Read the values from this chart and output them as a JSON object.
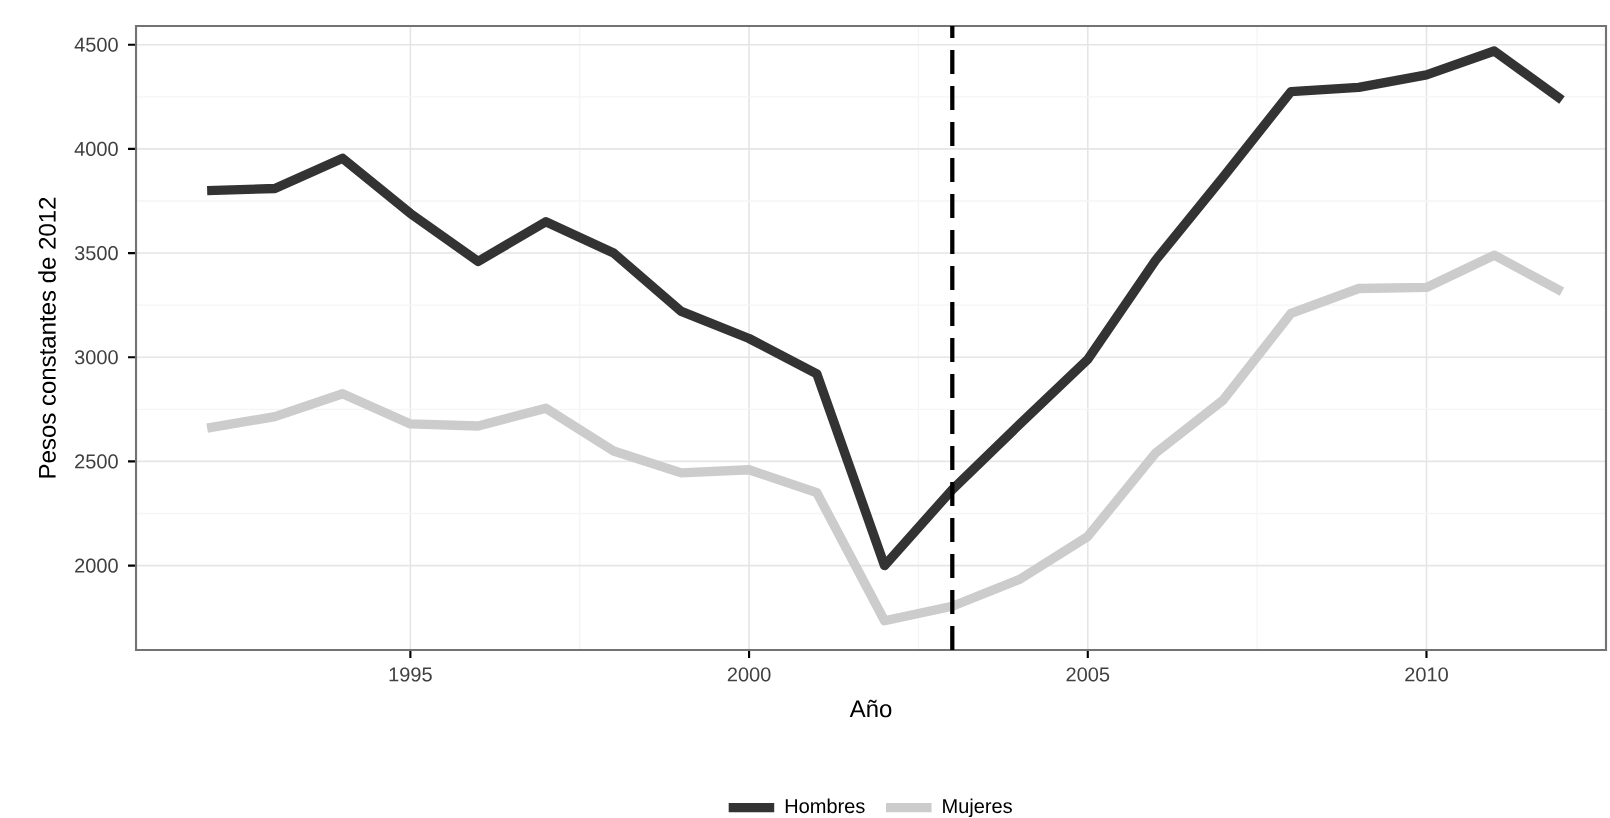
{
  "chart_data": {
    "type": "line",
    "xlabel": "Año",
    "ylabel": "Pesos constantes de 2012",
    "x": [
      1992,
      1993,
      1994,
      1995,
      1996,
      1997,
      1998,
      1999,
      2000,
      2001,
      2002,
      2003,
      2004,
      2005,
      2006,
      2007,
      2008,
      2009,
      2010,
      2011,
      2012
    ],
    "series": [
      {
        "name": "Hombres",
        "color": "#333333",
        "values": [
          3800,
          3810,
          3955,
          3690,
          3460,
          3650,
          3500,
          3220,
          3090,
          2920,
          2000,
          2365,
          2680,
          2990,
          3465,
          3865,
          4275,
          4295,
          4355,
          4470,
          4235
        ]
      },
      {
        "name": "Mujeres",
        "color": "#cccccc",
        "values": [
          2660,
          2715,
          2825,
          2680,
          2670,
          2755,
          2550,
          2445,
          2460,
          2350,
          1735,
          1805,
          1935,
          2140,
          2540,
          2795,
          3210,
          3330,
          3335,
          3490,
          3315
        ]
      }
    ],
    "xlim": [
      1990.95,
      2012.65
    ],
    "ylim": [
      1595,
      4590
    ],
    "xticks": [
      1995,
      2000,
      2005,
      2010
    ],
    "yticks": [
      2000,
      2500,
      3000,
      3500,
      4000,
      4500
    ],
    "ref_lines": [
      {
        "axis": "x",
        "value": 2003,
        "color": "#000000",
        "line_style": "dashed"
      }
    ],
    "grid": true,
    "legend": "bottom",
    "line_style": "solid",
    "marker": "none"
  }
}
